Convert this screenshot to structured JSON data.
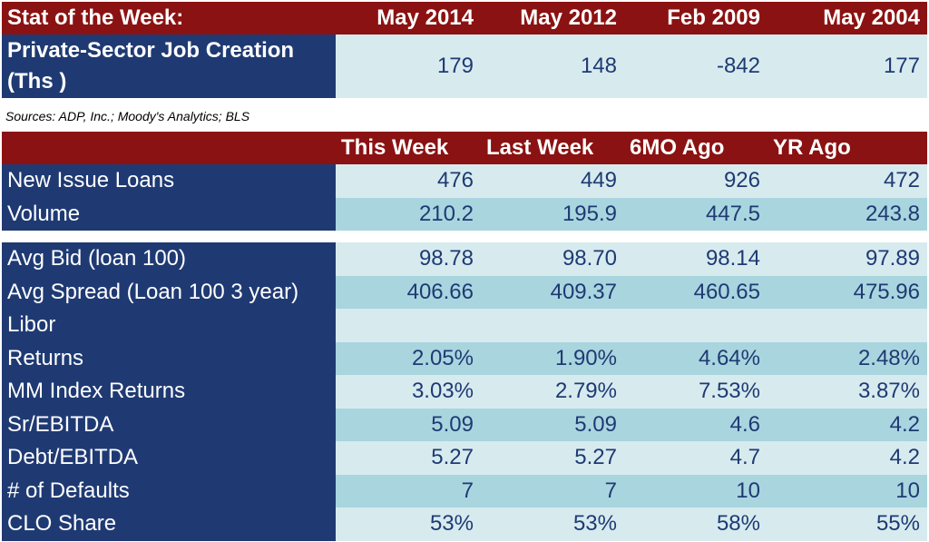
{
  "stat": {
    "header": "Stat of the Week:",
    "columns": [
      "May 2014",
      "May 2012",
      "Feb 2009",
      "May 2004"
    ],
    "label": "Private-Sector Job Creation (Ths )",
    "values": [
      "179",
      "148",
      "-842",
      "177"
    ]
  },
  "sources": "Sources: ADP, Inc.; Moody's Analytics; BLS",
  "table": {
    "columns": [
      "This Week",
      "Last Week",
      "6MO Ago",
      "YR Ago"
    ],
    "group1": [
      {
        "label": "New Issue Loans",
        "values": [
          "476",
          "449",
          "926",
          "472"
        ]
      },
      {
        "label": "Volume",
        "values": [
          "210.2",
          "195.9",
          "447.5",
          "243.8"
        ]
      }
    ],
    "group2": [
      {
        "label": "Avg Bid (loan 100)",
        "values": [
          "98.78",
          "98.70",
          "98.14",
          "97.89"
        ]
      },
      {
        "label": "Avg Spread (Loan 100 3 year)",
        "values": [
          "406.66",
          "409.37",
          "460.65",
          "475.96"
        ]
      },
      {
        "label": "Libor",
        "values": [
          "",
          "",
          "",
          ""
        ]
      },
      {
        "label": "Returns",
        "values": [
          "2.05%",
          "1.90%",
          "4.64%",
          "2.48%"
        ]
      },
      {
        "label": "MM Index Returns",
        "values": [
          "3.03%",
          "2.79%",
          "7.53%",
          "3.87%"
        ]
      },
      {
        "label": "Sr/EBITDA",
        "values": [
          "5.09",
          "5.09",
          "4.6",
          "4.2"
        ]
      },
      {
        "label": "Debt/EBITDA",
        "values": [
          "5.27",
          "5.27",
          "4.7",
          "4.2"
        ]
      },
      {
        "label": "# of Defaults",
        "values": [
          "7",
          "7",
          "10",
          "10"
        ]
      },
      {
        "label": "CLO Share",
        "values": [
          "53%",
          "53%",
          "58%",
          "55%"
        ]
      }
    ]
  }
}
